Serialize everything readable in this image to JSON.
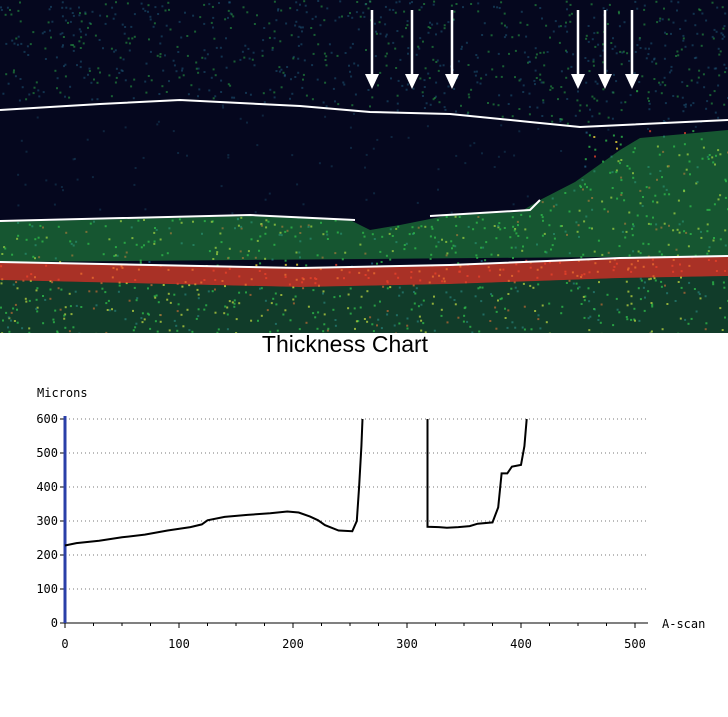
{
  "colors": {
    "scan_background": "#05071e",
    "signal_low": "#1f5f7f",
    "signal_mid": "#2db84a",
    "signal_high": "#e8d43a",
    "signal_peak": "#e0402a",
    "arrows": "#ffffff",
    "axis": "#2a3fa8",
    "thickness_line": "#000000"
  },
  "scan": {
    "arrow_count": 6,
    "description_icon": "down-arrow-icon"
  },
  "chart_data": {
    "type": "line",
    "title": "Thickness Chart",
    "ylabel": "Microns",
    "xlabel": "A-scan",
    "xlim": [
      0,
      500
    ],
    "ylim": [
      0,
      600
    ],
    "x_ticks": [
      0,
      100,
      200,
      300,
      400,
      500
    ],
    "y_ticks": [
      0,
      100,
      200,
      300,
      400,
      500,
      600
    ],
    "grid": "dotted horizontal",
    "series": [
      {
        "segments": [
          [
            [
              0,
              228
            ],
            [
              10,
              235
            ],
            [
              30,
              242
            ],
            [
              50,
              252
            ],
            [
              70,
              260
            ],
            [
              90,
              272
            ],
            [
              110,
              282
            ],
            [
              120,
              290
            ],
            [
              125,
              302
            ],
            [
              140,
              312
            ],
            [
              160,
              318
            ],
            [
              180,
              323
            ],
            [
              195,
              328
            ],
            [
              205,
              325
            ],
            [
              215,
              313
            ],
            [
              222,
              302
            ],
            [
              228,
              288
            ],
            [
              240,
              272
            ],
            [
              252,
              270
            ],
            [
              256,
              300
            ],
            [
              258,
              400
            ],
            [
              260,
              520
            ],
            [
              261,
              600
            ]
          ],
          [
            [
              318,
              600
            ],
            [
              318,
              283
            ],
            [
              328,
              282
            ],
            [
              335,
              280
            ],
            [
              345,
              282
            ],
            [
              355,
              285
            ],
            [
              362,
              292
            ],
            [
              375,
              296
            ],
            [
              380,
              340
            ],
            [
              383,
              440
            ],
            [
              388,
              440
            ],
            [
              392,
              460
            ],
            [
              400,
              465
            ],
            [
              403,
              520
            ],
            [
              405,
              600
            ]
          ]
        ]
      }
    ]
  }
}
